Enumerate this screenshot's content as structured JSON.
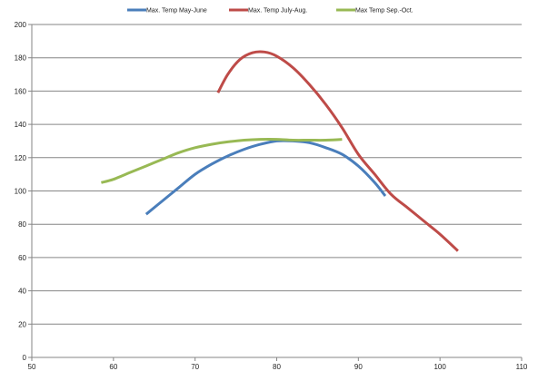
{
  "chart_data": {
    "type": "line",
    "title": "",
    "xlabel": "",
    "ylabel": "",
    "xlim": [
      50,
      110
    ],
    "ylim": [
      0,
      200
    ],
    "x_ticks": [
      50,
      60,
      70,
      80,
      90,
      100,
      110
    ],
    "y_ticks": [
      0,
      20,
      40,
      60,
      80,
      100,
      120,
      140,
      160,
      180,
      200
    ],
    "grid": "horizontal",
    "legend_position": "top",
    "series": [
      {
        "name": "Max. Temp May-June",
        "color": "#4a7ebb",
        "points": [
          [
            64,
            86
          ],
          [
            66,
            94
          ],
          [
            68,
            102
          ],
          [
            70,
            110
          ],
          [
            72,
            116
          ],
          [
            74,
            121
          ],
          [
            76,
            125
          ],
          [
            78,
            128
          ],
          [
            80,
            130
          ],
          [
            82,
            130
          ],
          [
            84,
            129
          ],
          [
            86,
            126
          ],
          [
            88,
            122
          ],
          [
            90,
            115
          ],
          [
            92,
            105
          ],
          [
            93.3,
            97
          ]
        ]
      },
      {
        "name": "Max. Temp July-Aug.",
        "color": "#be4b48",
        "points": [
          [
            72.8,
            159
          ],
          [
            74,
            170
          ],
          [
            75.5,
            179
          ],
          [
            77,
            183
          ],
          [
            78.5,
            183.5
          ],
          [
            80,
            181
          ],
          [
            82,
            174
          ],
          [
            84,
            164
          ],
          [
            86,
            152
          ],
          [
            88,
            138
          ],
          [
            90,
            122
          ],
          [
            92,
            110
          ],
          [
            94,
            98
          ],
          [
            96,
            90
          ],
          [
            98,
            82
          ],
          [
            100,
            74
          ],
          [
            102.2,
            64
          ]
        ]
      },
      {
        "name": "Max Temp Sep.-Oct.",
        "color": "#98b954",
        "points": [
          [
            58.5,
            105
          ],
          [
            60,
            107
          ],
          [
            62,
            111
          ],
          [
            64,
            115
          ],
          [
            66,
            119
          ],
          [
            68,
            123
          ],
          [
            70,
            126
          ],
          [
            72,
            128
          ],
          [
            74,
            129.5
          ],
          [
            76,
            130.5
          ],
          [
            78,
            131
          ],
          [
            80,
            131
          ],
          [
            82,
            130.5
          ],
          [
            84,
            130.5
          ],
          [
            86,
            130.5
          ],
          [
            88,
            131
          ]
        ]
      }
    ]
  }
}
